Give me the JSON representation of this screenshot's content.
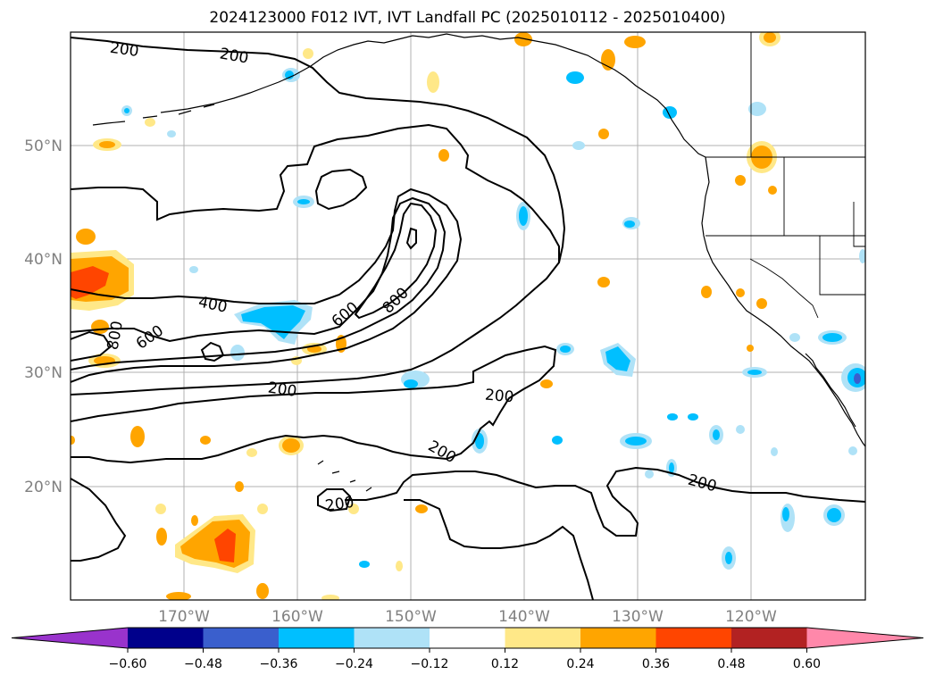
{
  "title": "2024123000 F012 IVT, IVT Landfall PC (2025010112 - 2025010400)",
  "map": {
    "lat_ticks": [
      "50°N",
      "40°N",
      "30°N",
      "20°N"
    ],
    "lon_ticks": [
      "170°W",
      "160°W",
      "150°W",
      "140°W",
      "130°W",
      "120°W"
    ],
    "contour_labels": [
      "200",
      "200",
      "400",
      "600",
      "600",
      "800",
      "800",
      "200",
      "200",
      "200",
      "200",
      "200"
    ]
  },
  "colorbar": {
    "colors": [
      "#9933cc",
      "#00008b",
      "#3a5fcd",
      "#00bfff",
      "#afe2f7",
      "#ffffff",
      "#ffe888",
      "#ffa500",
      "#ff4500",
      "#b22222",
      "#ff88aa"
    ],
    "ticks": [
      "−0.60",
      "−0.48",
      "−0.36",
      "−0.24",
      "−0.12",
      "0.12",
      "0.24",
      "0.36",
      "0.48",
      "0.60"
    ]
  }
}
